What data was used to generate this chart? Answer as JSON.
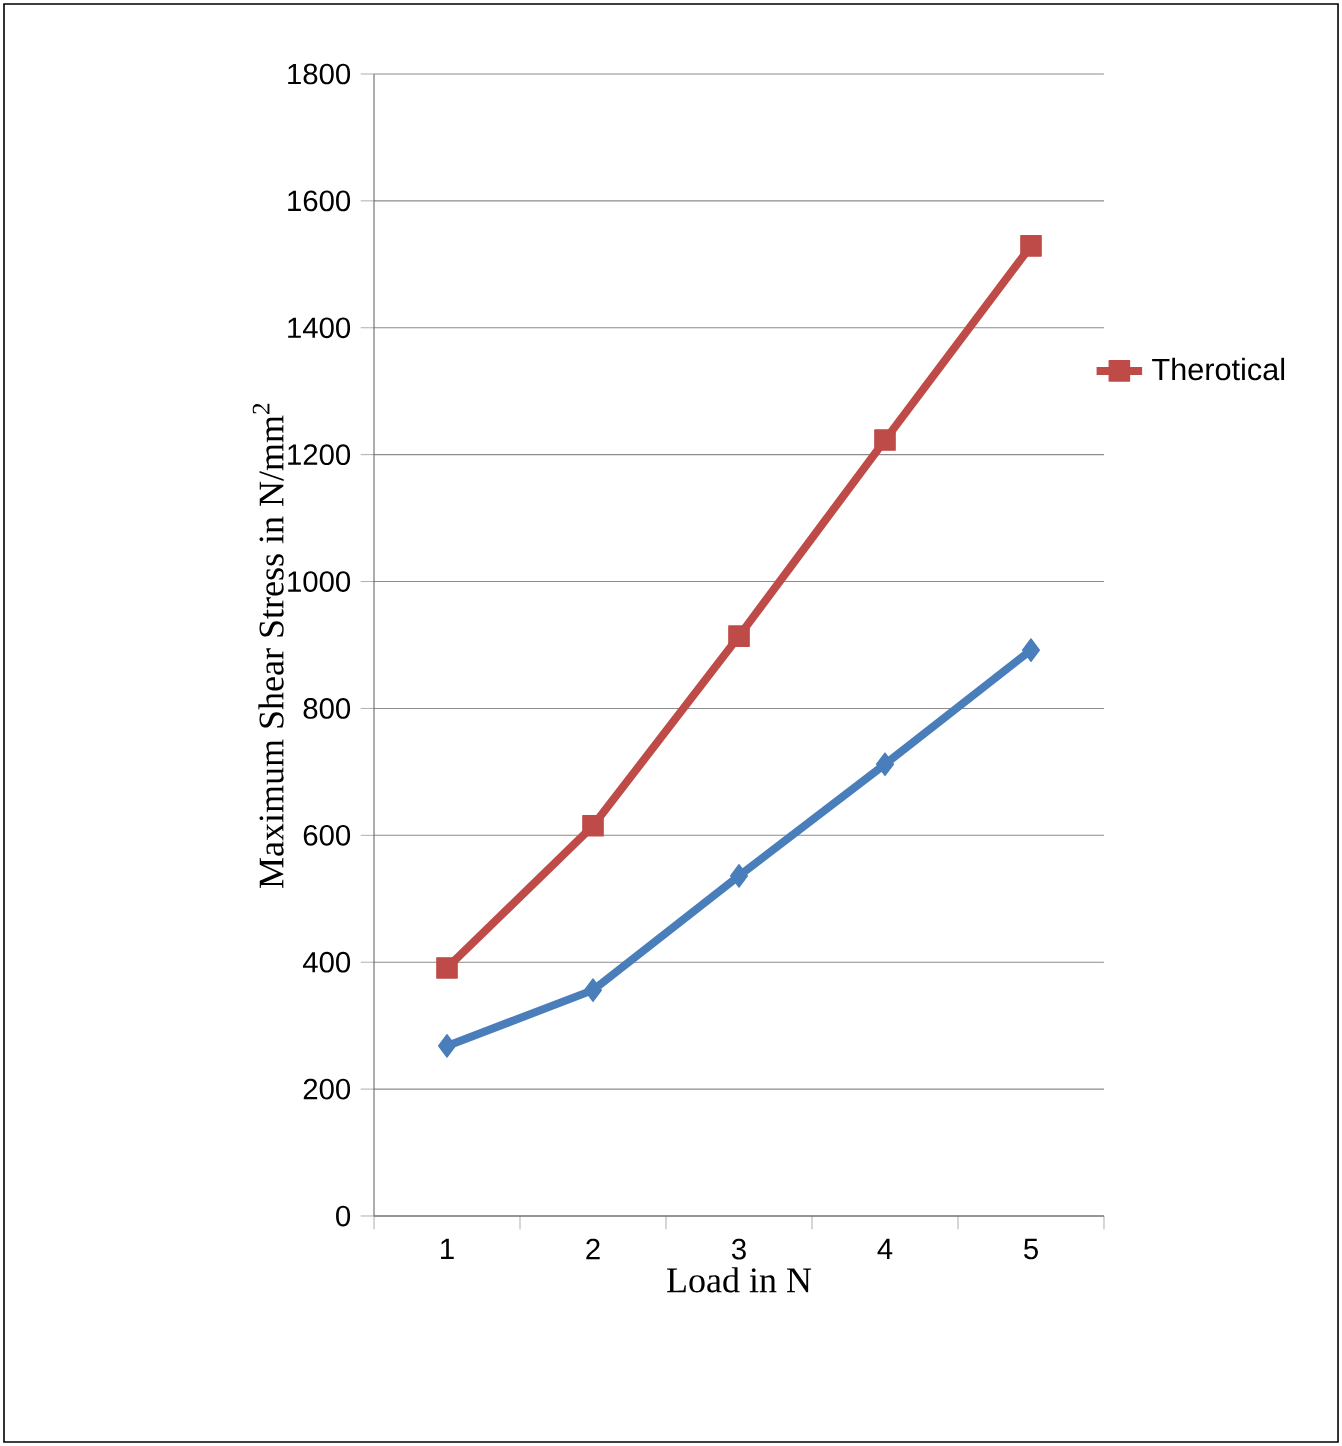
{
  "chart_data": {
    "type": "line",
    "xlabel": "Load in N",
    "ylabel": "Maximum Shear Stress in N/mm$^{2}$",
    "categories": [
      "1",
      "2",
      "3",
      "4",
      "5"
    ],
    "series": [
      {
        "name": "Therotical",
        "color": "#be4b48",
        "marker": "square",
        "values": [
          391,
          615,
          914,
          1223,
          1529
        ]
      },
      {
        "color": "#4a7ebb",
        "marker": "diamond",
        "values": [
          268,
          356,
          536,
          712,
          892
        ]
      }
    ],
    "ylim": [
      0,
      1800
    ],
    "yticks": [
      0,
      200,
      400,
      600,
      800,
      1000,
      1200,
      1400,
      1600,
      1800
    ],
    "grid": "y",
    "legend": "right"
  }
}
